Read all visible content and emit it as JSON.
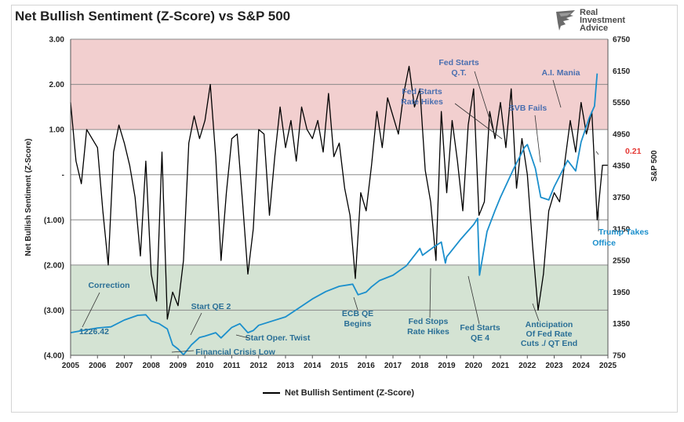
{
  "chart_data": {
    "type": "line",
    "title": "Net Bullish Sentiment (Z-Score) vs S&P 500",
    "ylabel_left": "Net Bullish Sentiment (Z-Score)",
    "ylabel_right": "S&P 500",
    "xlim": [
      2005,
      2025
    ],
    "x_ticks": [
      "2005",
      "2006",
      "2007",
      "2008",
      "2009",
      "2010",
      "2011",
      "2012",
      "2013",
      "2014",
      "2015",
      "2016",
      "2017",
      "2018",
      "2019",
      "2020",
      "2021",
      "2022",
      "2023",
      "2024",
      "2025"
    ],
    "ylim_left": [
      -4,
      3
    ],
    "y_ticks_left": [
      "3.00",
      "2.00",
      "1.00",
      "-",
      "(1.00)",
      "(2.00)",
      "(3.00)",
      "(4.00)"
    ],
    "ylim_right": [
      750,
      6750
    ],
    "y_ticks_right": [
      "6750",
      "6150",
      "5550",
      "4950",
      "4350",
      "3750",
      "3150",
      "2550",
      "1950",
      "1350",
      "750"
    ],
    "bands": [
      {
        "name": "overbought",
        "from": 1,
        "to": 3,
        "color": "#f2cfcf"
      },
      {
        "name": "oversold",
        "from": -4,
        "to": -2,
        "color": "#d4e3d3"
      }
    ],
    "series": [
      {
        "name": "Net Bullish Sentiment (Z-Score)",
        "axis": "left",
        "color": "#000000",
        "x": [
          2005.0,
          2005.2,
          2005.4,
          2005.6,
          2005.8,
          2006.0,
          2006.2,
          2006.4,
          2006.6,
          2006.8,
          2007.0,
          2007.2,
          2007.4,
          2007.6,
          2007.8,
          2008.0,
          2008.2,
          2008.4,
          2008.6,
          2008.8,
          2009.0,
          2009.2,
          2009.4,
          2009.6,
          2009.8,
          2010.0,
          2010.2,
          2010.4,
          2010.6,
          2010.8,
          2011.0,
          2011.2,
          2011.4,
          2011.6,
          2011.8,
          2012.0,
          2012.2,
          2012.4,
          2012.6,
          2012.8,
          2013.0,
          2013.2,
          2013.4,
          2013.6,
          2013.8,
          2014.0,
          2014.2,
          2014.4,
          2014.6,
          2014.8,
          2015.0,
          2015.2,
          2015.4,
          2015.6,
          2015.8,
          2016.0,
          2016.2,
          2016.4,
          2016.6,
          2016.8,
          2017.0,
          2017.2,
          2017.4,
          2017.6,
          2017.8,
          2018.0,
          2018.2,
          2018.4,
          2018.6,
          2018.8,
          2019.0,
          2019.2,
          2019.4,
          2019.6,
          2019.8,
          2020.0,
          2020.2,
          2020.4,
          2020.6,
          2020.8,
          2021.0,
          2021.2,
          2021.4,
          2021.6,
          2021.8,
          2022.0,
          2022.2,
          2022.4,
          2022.6,
          2022.8,
          2023.0,
          2023.2,
          2023.4,
          2023.6,
          2023.8,
          2024.0,
          2024.2,
          2024.4,
          2024.6,
          2024.8,
          2025.0
        ],
        "values": [
          1.6,
          0.3,
          -0.2,
          1.0,
          0.8,
          0.6,
          -0.8,
          -2.0,
          0.5,
          1.1,
          0.7,
          0.2,
          -0.5,
          -1.8,
          0.3,
          -2.2,
          -2.8,
          0.5,
          -3.2,
          -2.6,
          -2.9,
          -1.9,
          0.7,
          1.3,
          0.8,
          1.2,
          2.0,
          0.4,
          -1.9,
          -0.4,
          0.8,
          0.9,
          -0.6,
          -2.2,
          -1.2,
          1.0,
          0.9,
          -0.9,
          0.4,
          1.5,
          0.6,
          1.2,
          0.3,
          1.5,
          1.0,
          0.8,
          1.2,
          0.5,
          1.8,
          0.4,
          0.7,
          -0.3,
          -0.9,
          -2.3,
          -0.4,
          -0.8,
          0.2,
          1.4,
          0.6,
          1.7,
          1.3,
          0.9,
          1.8,
          2.4,
          1.5,
          1.9,
          0.1,
          -0.6,
          -1.9,
          1.4,
          -0.4,
          1.2,
          0.3,
          -0.8,
          1.1,
          1.9,
          -0.9,
          -0.6,
          1.4,
          0.8,
          1.6,
          0.6,
          1.9,
          -0.3,
          0.8,
          0.0,
          -1.6,
          -3.0,
          -2.2,
          -0.8,
          -0.4,
          -0.6,
          0.3,
          1.2,
          0.5,
          1.6,
          0.9,
          1.4,
          -1.0,
          0.21,
          0.21
        ]
      },
      {
        "name": "S&P 500",
        "axis": "right",
        "color": "#1b8fcc",
        "x": [
          2005.0,
          2005.5,
          2006.0,
          2006.5,
          2007.0,
          2007.5,
          2007.8,
          2008.0,
          2008.3,
          2008.6,
          2008.8,
          2009.0,
          2009.2,
          2009.5,
          2009.8,
          2010.0,
          2010.4,
          2010.6,
          2011.0,
          2011.3,
          2011.6,
          2011.8,
          2012.0,
          2012.5,
          2013.0,
          2013.5,
          2014.0,
          2014.5,
          2015.0,
          2015.5,
          2015.7,
          2016.0,
          2016.2,
          2016.5,
          2017.0,
          2017.5,
          2018.0,
          2018.1,
          2018.5,
          2018.8,
          2018.95,
          2019.0,
          2019.5,
          2020.0,
          2020.15,
          2020.22,
          2020.5,
          2020.8,
          2021.0,
          2021.5,
          2021.9,
          2022.0,
          2022.3,
          2022.5,
          2022.8,
          2023.0,
          2023.5,
          2023.8,
          2024.0,
          2024.3,
          2024.5,
          2024.6
        ],
        "values": [
          1180,
          1226,
          1270,
          1290,
          1420,
          1510,
          1520,
          1400,
          1350,
          1250,
          950,
          870,
          760,
          950,
          1090,
          1115,
          1180,
          1080,
          1280,
          1350,
          1180,
          1220,
          1320,
          1400,
          1480,
          1650,
          1820,
          1960,
          2060,
          2100,
          1900,
          1950,
          2050,
          2170,
          2270,
          2450,
          2780,
          2650,
          2800,
          2900,
          2500,
          2620,
          2940,
          3230,
          3350,
          2270,
          3100,
          3500,
          3750,
          4300,
          4700,
          4750,
          4300,
          3750,
          3700,
          3950,
          4450,
          4250,
          4800,
          5250,
          5480,
          6100
        ]
      }
    ],
    "annotations": [
      {
        "text": "Fed Starts Q.T.",
        "color": "#4a6fb0"
      },
      {
        "text": "A.I. Mania",
        "color": "#4a6fb0"
      },
      {
        "text": "Fed Starts Rate Hikes",
        "color": "#4a6fb0"
      },
      {
        "text": "SVB Fails",
        "color": "#4a6fb0"
      },
      {
        "text": "0.21",
        "color": "#e53935"
      },
      {
        "text": "Trump Takes Office",
        "color": "#1b8fcc"
      },
      {
        "text": "Correction",
        "color": "#2a6f96"
      },
      {
        "text": "1226.42",
        "color": "#2a6f96"
      },
      {
        "text": "Start QE 2",
        "color": "#2a6f96"
      },
      {
        "text": "Start Oper. Twist",
        "color": "#2a6f96"
      },
      {
        "text": "Financial Crisis Low",
        "color": "#2a6f96"
      },
      {
        "text": "ECB QE Begins",
        "color": "#2a6f96"
      },
      {
        "text": "Fed Stops Rate Hikes",
        "color": "#2a6f96"
      },
      {
        "text": "Fed Starts QE 4",
        "color": "#2a6f96"
      },
      {
        "text": "Anticipation Of Fed Rate Cuts ./ QT End",
        "color": "#2a6f96"
      }
    ]
  },
  "legend": {
    "label": "Net Bullish Sentiment (Z-Score)"
  },
  "logo": {
    "line1": "Real",
    "line2": "Investment",
    "line3": "Advice"
  }
}
